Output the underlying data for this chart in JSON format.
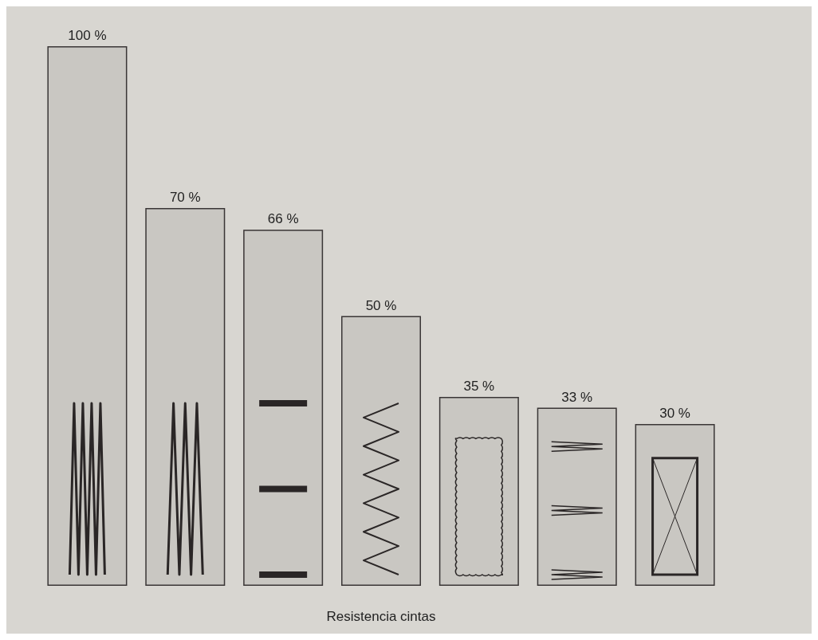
{
  "chart_data": {
    "type": "bar",
    "xlabel": "Resistencia cintas",
    "categories": [
      null,
      null,
      null,
      null,
      null,
      null,
      null
    ],
    "values": [
      100,
      70,
      66,
      50,
      35,
      33,
      30
    ],
    "value_labels": [
      "100 %",
      "70 %",
      "66 %",
      "50 %",
      "35 %",
      "33 %",
      "30 %"
    ],
    "color": "#c9c7c2"
  }
}
